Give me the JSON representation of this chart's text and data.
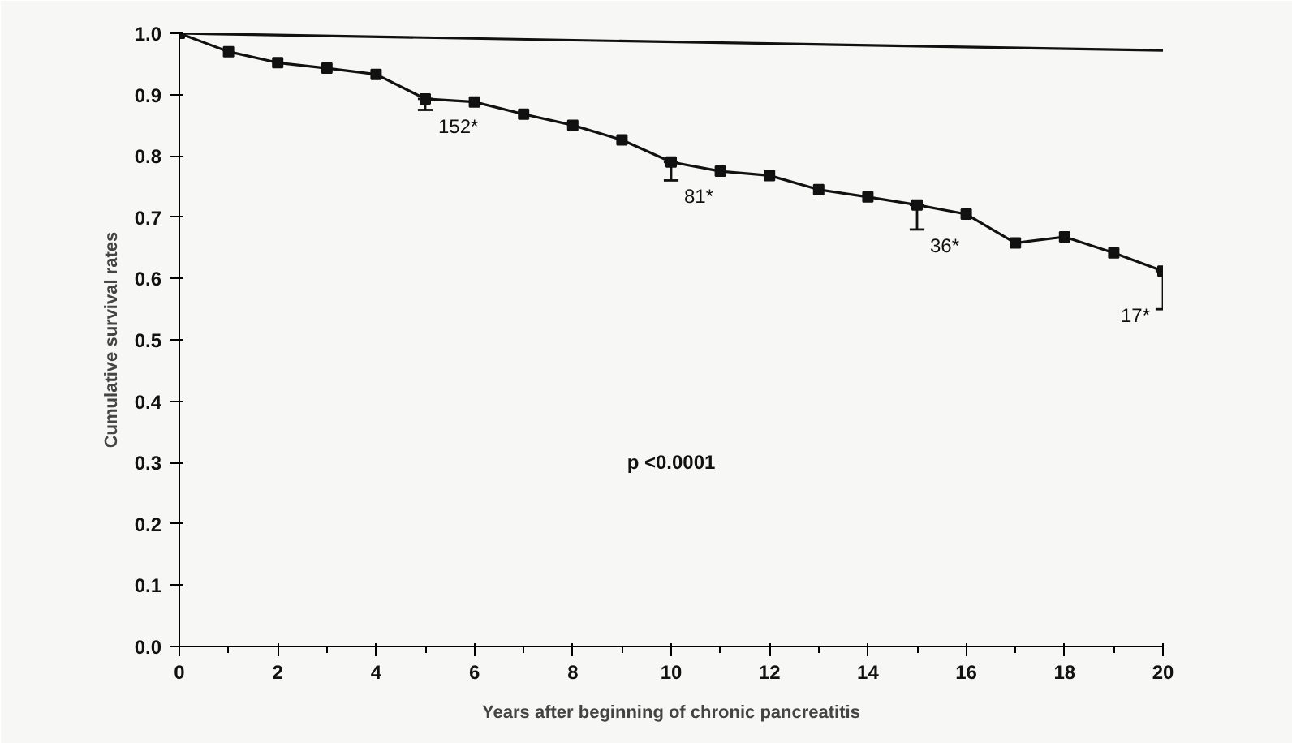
{
  "chart_data": {
    "type": "line",
    "xlabel": "Years after beginning of chronic pancreatitis",
    "ylabel": "Cumulative survival rates",
    "xlim": [
      0,
      20
    ],
    "ylim": [
      0,
      1.0
    ],
    "xticks": [
      0,
      2,
      4,
      6,
      8,
      10,
      12,
      14,
      16,
      18,
      20
    ],
    "yticks": [
      {
        "value": 0,
        "label": "0.0"
      },
      {
        "value": 0.1,
        "label": "0.1"
      },
      {
        "value": 0.2,
        "label": "0.2"
      },
      {
        "value": 0.3,
        "label": "0.3"
      },
      {
        "value": 0.4,
        "label": "0.4"
      },
      {
        "value": 0.5,
        "label": "0.5"
      },
      {
        "value": 0.6,
        "label": "0.6"
      },
      {
        "value": 0.7,
        "label": "0.7"
      },
      {
        "value": 0.8,
        "label": "0.8"
      },
      {
        "value": 0.9,
        "label": "0.9"
      },
      {
        "value": 1.0,
        "label": "1.0"
      }
    ],
    "grid": false,
    "series": [
      {
        "color": "#111111",
        "marker": "square",
        "x": [
          0,
          1,
          2,
          3,
          4,
          5,
          6,
          7,
          8,
          9,
          10,
          11,
          12,
          13,
          14,
          15,
          16,
          17,
          18,
          19,
          20
        ],
        "values": [
          1.0,
          0.97,
          0.952,
          0.943,
          0.933,
          0.893,
          0.888,
          0.868,
          0.85,
          0.826,
          0.79,
          0.775,
          0.768,
          0.745,
          0.733,
          0.72,
          0.705,
          0.658,
          0.668,
          0.642,
          0.612
        ],
        "errors": [
          null,
          null,
          null,
          null,
          null,
          [
            0.875,
            0.893
          ],
          null,
          null,
          null,
          null,
          [
            0.76,
            0.79
          ],
          null,
          null,
          null,
          null,
          [
            0.68,
            0.72
          ],
          null,
          null,
          null,
          null,
          [
            0.55,
            0.612
          ]
        ]
      },
      {
        "color": "#111111",
        "marker": "none",
        "x": [
          0,
          20
        ],
        "values": [
          1.0,
          0.972
        ]
      }
    ],
    "annotations": [
      "152*",
      "81*",
      "36*",
      "17*",
      "p <0.0001"
    ]
  }
}
